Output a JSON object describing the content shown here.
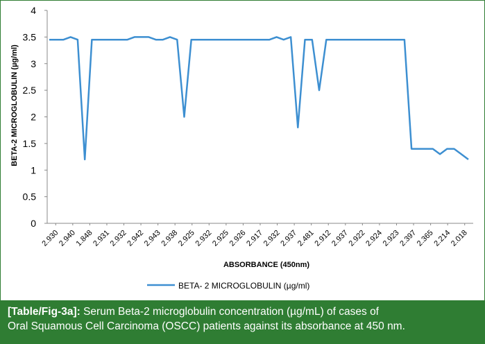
{
  "chart_data": {
    "type": "line",
    "xlabel": "ABSORBANCE (450nm)",
    "ylabel": "BETA-2 MICROGLOBULIN (µg/ml)",
    "ylim": [
      0,
      4
    ],
    "yticks": [
      0,
      0.5,
      1,
      1.5,
      2,
      2.5,
      3,
      3.5,
      4
    ],
    "ytick_labels": [
      "0",
      "0.5",
      "1",
      "1.5",
      "2",
      "2.5",
      "3",
      "3.5",
      "4"
    ],
    "tick_labels": [
      "2.930",
      "2.940",
      "1.848",
      "2.931",
      "2.932",
      "2.942",
      "2.943",
      "2.938",
      "2.925",
      "2.932",
      "2.925",
      "2.926",
      "2.917",
      "2.932",
      "2.937",
      "2.481",
      "2.912",
      "2.937",
      "2.922",
      "2.924",
      "2.923",
      "2.397",
      "2.365",
      "2.214",
      "2.018"
    ],
    "grid": false,
    "legend_position": "bottom",
    "series": [
      {
        "name": "BETA- 2 MICROGLOBULIN (µg/ml)",
        "color": "#3d8fd1",
        "values": [
          3.45,
          3.45,
          3.45,
          3.5,
          3.45,
          1.2,
          3.45,
          3.45,
          3.45,
          3.45,
          3.45,
          3.45,
          3.5,
          3.5,
          3.5,
          3.45,
          3.45,
          3.5,
          3.45,
          2.0,
          3.45,
          3.45,
          3.45,
          3.45,
          3.45,
          3.45,
          3.45,
          3.45,
          3.45,
          3.45,
          3.45,
          3.45,
          3.5,
          3.45,
          3.5,
          1.8,
          3.45,
          3.45,
          2.5,
          3.45,
          3.45,
          3.45,
          3.45,
          3.45,
          3.45,
          3.45,
          3.45,
          3.45,
          3.45,
          3.45,
          3.45,
          1.4,
          1.4,
          1.4,
          1.4,
          1.3,
          1.4,
          1.4,
          1.3,
          1.2
        ]
      }
    ]
  },
  "caption": {
    "label": "[Table/Fig-3a]:",
    "line1": " Serum Beta-2 microglobulin concentration (µg/mL) of cases of",
    "line2": "Oral Squamous Cell Carcinoma (OSCC) patients against its absorbance at 450 nm."
  }
}
